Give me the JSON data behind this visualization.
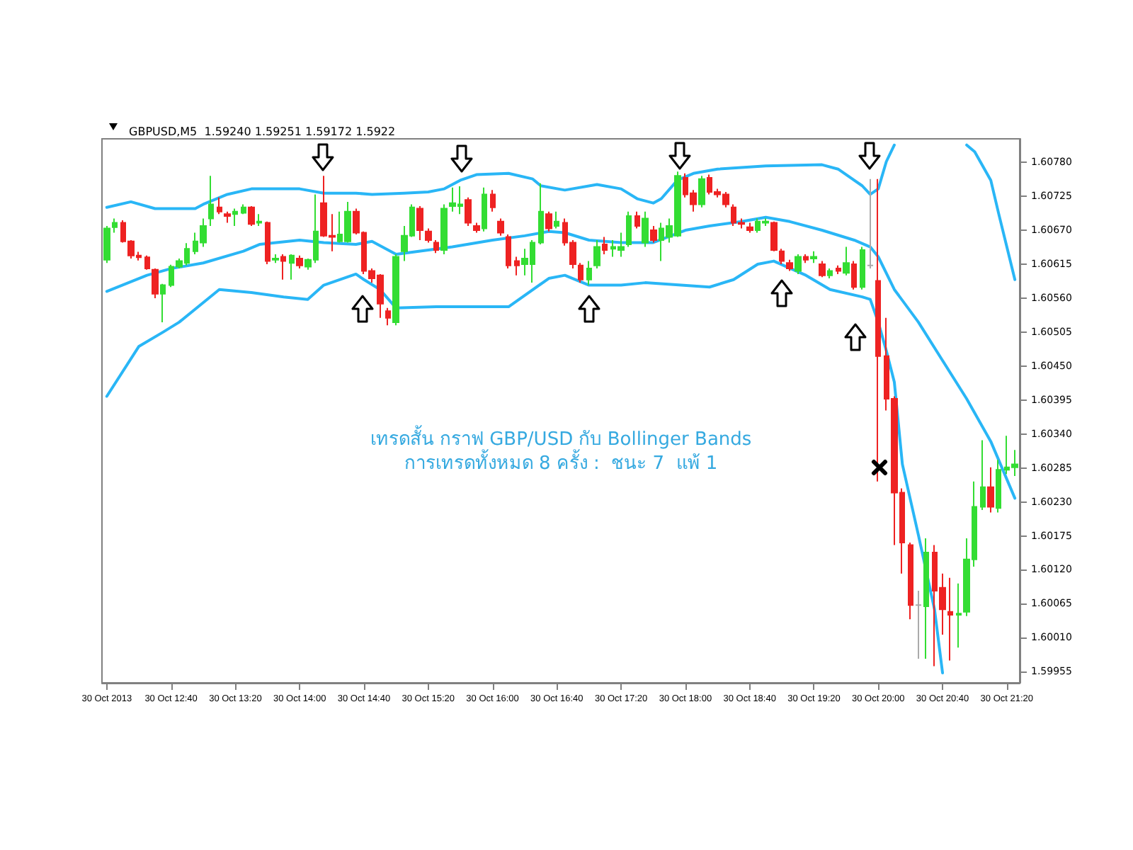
{
  "chart_data": {
    "type": "candlestick",
    "title": "GBPUSD,M5  1.59240 1.59251 1.59172 1.5922",
    "annotations": [
      "เทรดสั้น กราฟ GBP/USD กับ Bollinger Bands",
      "การเทรดทั้งหมด 8 ครั้ง :  ชนะ 7  แพ้ 1"
    ],
    "x": [
      "2013-10-30T12:00",
      "2013-10-30T12:05",
      "2013-10-30T12:10",
      "2013-10-30T12:15",
      "2013-10-30T12:20",
      "2013-10-30T12:25",
      "2013-10-30T12:30",
      "2013-10-30T12:35",
      "2013-10-30T12:40",
      "2013-10-30T12:45",
      "2013-10-30T12:50",
      "2013-10-30T12:55",
      "2013-10-30T13:00",
      "2013-10-30T13:05",
      "2013-10-30T13:10",
      "2013-10-30T13:15",
      "2013-10-30T13:20",
      "2013-10-30T13:25",
      "2013-10-30T13:30",
      "2013-10-30T13:35",
      "2013-10-30T13:40",
      "2013-10-30T13:45",
      "2013-10-30T13:50",
      "2013-10-30T13:55",
      "2013-10-30T14:00",
      "2013-10-30T14:05",
      "2013-10-30T14:10",
      "2013-10-30T14:15",
      "2013-10-30T14:20",
      "2013-10-30T14:25",
      "2013-10-30T14:30",
      "2013-10-30T14:35",
      "2013-10-30T14:40",
      "2013-10-30T14:45",
      "2013-10-30T14:50",
      "2013-10-30T14:55",
      "2013-10-30T15:00",
      "2013-10-30T15:05",
      "2013-10-30T15:10",
      "2013-10-30T15:15",
      "2013-10-30T15:20",
      "2013-10-30T15:25",
      "2013-10-30T15:30",
      "2013-10-30T15:35",
      "2013-10-30T15:40",
      "2013-10-30T15:45",
      "2013-10-30T15:50",
      "2013-10-30T15:55",
      "2013-10-30T16:00",
      "2013-10-30T16:05",
      "2013-10-30T16:10",
      "2013-10-30T16:15",
      "2013-10-30T16:20",
      "2013-10-30T16:25",
      "2013-10-30T16:30",
      "2013-10-30T16:35",
      "2013-10-30T16:40",
      "2013-10-30T16:45",
      "2013-10-30T16:50",
      "2013-10-30T16:55",
      "2013-10-30T17:00",
      "2013-10-30T17:05",
      "2013-10-30T17:10",
      "2013-10-30T17:15",
      "2013-10-30T17:20",
      "2013-10-30T17:25",
      "2013-10-30T17:30",
      "2013-10-30T17:35",
      "2013-10-30T17:40",
      "2013-10-30T17:45",
      "2013-10-30T17:50",
      "2013-10-30T17:55",
      "2013-10-30T18:00",
      "2013-10-30T18:05",
      "2013-10-30T18:10",
      "2013-10-30T18:15",
      "2013-10-30T18:20",
      "2013-10-30T18:25",
      "2013-10-30T18:30",
      "2013-10-30T18:35",
      "2013-10-30T18:40",
      "2013-10-30T18:45",
      "2013-10-30T18:50",
      "2013-10-30T18:55",
      "2013-10-30T19:00",
      "2013-10-30T19:05",
      "2013-10-30T19:10",
      "2013-10-30T19:15",
      "2013-10-30T19:20",
      "2013-10-30T19:25",
      "2013-10-30T19:30",
      "2013-10-30T19:35",
      "2013-10-30T19:40",
      "2013-10-30T19:45",
      "2013-10-30T19:50",
      "2013-10-30T19:55",
      "2013-10-30T20:00",
      "2013-10-30T20:05",
      "2013-10-30T20:10",
      "2013-10-30T20:15",
      "2013-10-30T20:20",
      "2013-10-30T20:25",
      "2013-10-30T20:30",
      "2013-10-30T20:35",
      "2013-10-30T20:40",
      "2013-10-30T20:45",
      "2013-10-30T20:50",
      "2013-10-30T20:55",
      "2013-10-30T21:00",
      "2013-10-30T21:05",
      "2013-10-30T21:10",
      "2013-10-30T21:15",
      "2013-10-30T21:20",
      "2013-10-30T21:25"
    ],
    "xlim": [
      "2013-10-30T11:57",
      "2013-10-30T21:28"
    ],
    "xticks": [
      {
        "value": "2013-10-30T12:00",
        "label": "30 Oct 2013"
      },
      {
        "value": "2013-10-30T12:40",
        "label": "30 Oct 12:40"
      },
      {
        "value": "2013-10-30T13:20",
        "label": "30 Oct 13:20"
      },
      {
        "value": "2013-10-30T14:00",
        "label": "30 Oct 14:00"
      },
      {
        "value": "2013-10-30T14:40",
        "label": "30 Oct 14:40"
      },
      {
        "value": "2013-10-30T15:20",
        "label": "30 Oct 15:20"
      },
      {
        "value": "2013-10-30T16:00",
        "label": "30 Oct 16:00"
      },
      {
        "value": "2013-10-30T16:40",
        "label": "30 Oct 16:40"
      },
      {
        "value": "2013-10-30T17:20",
        "label": "30 Oct 17:20"
      },
      {
        "value": "2013-10-30T18:00",
        "label": "30 Oct 18:00"
      },
      {
        "value": "2013-10-30T18:40",
        "label": "30 Oct 18:40"
      },
      {
        "value": "2013-10-30T19:20",
        "label": "30 Oct 19:20"
      },
      {
        "value": "2013-10-30T20:00",
        "label": "30 Oct 20:00"
      },
      {
        "value": "2013-10-30T20:40",
        "label": "30 Oct 20:40"
      },
      {
        "value": "2013-10-30T21:20",
        "label": "30 Oct 21:20"
      }
    ],
    "ylim": [
      1.59937,
      1.60818
    ],
    "yticks": [
      1.59955,
      {
        "value": 1.6001,
        "label": "1.60010"
      },
      1.60065,
      {
        "value": 1.6012,
        "label": "1.60120"
      },
      1.60175,
      {
        "value": 1.6023,
        "label": "1.60230"
      },
      1.60285,
      {
        "value": 1.6034,
        "label": "1.60340"
      },
      1.60395,
      {
        "value": 1.6045,
        "label": "1.60450"
      },
      1.60505,
      {
        "value": 1.6056,
        "label": "1.60560"
      },
      1.60615,
      {
        "value": 1.6067,
        "label": "1.60670"
      },
      1.60725,
      {
        "value": 1.6078,
        "label": "1.60780"
      }
    ],
    "series": [
      {
        "type": "candlestick",
        "ohlc": [
          [
            1.60622,
            1.60677,
            1.60617,
            1.60673
          ],
          [
            1.60675,
            1.60689,
            1.60666,
            1.60682
          ],
          [
            1.60682,
            1.60686,
            1.6065,
            1.60652
          ],
          [
            1.60652,
            1.60654,
            1.60624,
            1.60629
          ],
          [
            1.60629,
            1.60635,
            1.60621,
            1.60626
          ],
          [
            1.60626,
            1.60629,
            1.60606,
            1.60608
          ],
          [
            1.60606,
            1.60608,
            1.6056,
            1.60567
          ],
          [
            1.60567,
            1.60583,
            1.60521,
            1.60581
          ],
          [
            1.60581,
            1.60614,
            1.60578,
            1.60611
          ],
          [
            1.60611,
            1.60624,
            1.60608,
            1.6062
          ],
          [
            1.60617,
            1.60649,
            1.60613,
            1.6064
          ],
          [
            1.60636,
            1.60666,
            1.60631,
            1.60652
          ],
          [
            1.6065,
            1.60689,
            1.60643,
            1.60677
          ],
          [
            1.60689,
            1.60758,
            1.60677,
            1.60712
          ],
          [
            1.60707,
            1.60723,
            1.60696,
            1.607
          ],
          [
            1.60696,
            1.607,
            1.60682,
            1.60693
          ],
          [
            1.60696,
            1.60705,
            1.60677,
            1.607
          ],
          [
            1.60698,
            1.60712,
            1.60696,
            1.60707
          ],
          [
            1.60707,
            1.60709,
            1.60677,
            1.6068
          ],
          [
            1.60682,
            1.60696,
            1.60677,
            1.60684
          ],
          [
            1.60682,
            1.60684,
            1.60615,
            1.6062
          ],
          [
            1.60622,
            1.60631,
            1.60617,
            1.60624
          ],
          [
            1.60627,
            1.60631,
            1.6059,
            1.6062
          ],
          [
            1.60617,
            1.60631,
            1.6059,
            1.60629
          ],
          [
            1.60624,
            1.60629,
            1.60608,
            1.60613
          ],
          [
            1.60611,
            1.60624,
            1.60606,
            1.60622
          ],
          [
            1.60622,
            1.60728,
            1.60617,
            1.60668
          ],
          [
            1.60714,
            1.60758,
            1.60659,
            1.60661
          ],
          [
            1.60661,
            1.60696,
            1.60636,
            1.60659
          ],
          [
            1.60652,
            1.607,
            1.6065,
            1.60663
          ],
          [
            1.60652,
            1.60716,
            1.6065,
            1.607
          ],
          [
            1.607,
            1.60705,
            1.60663,
            1.60666
          ],
          [
            1.60666,
            1.60668,
            1.60599,
            1.60604
          ],
          [
            1.60604,
            1.60608,
            1.60585,
            1.60592
          ],
          [
            1.60597,
            1.60599,
            1.60528,
            1.60551
          ],
          [
            1.60539,
            1.60544,
            1.60516,
            1.60528
          ],
          [
            1.60521,
            1.60631,
            1.60516,
            1.60627
          ],
          [
            1.60636,
            1.60677,
            1.6062,
            1.60661
          ],
          [
            1.60661,
            1.60712,
            1.60659,
            1.60707
          ],
          [
            1.60705,
            1.60709,
            1.60654,
            1.6067
          ],
          [
            1.60668,
            1.60673,
            1.6065,
            1.60654
          ],
          [
            1.6065,
            1.60654,
            1.60633,
            1.60638
          ],
          [
            1.60638,
            1.60712,
            1.60631,
            1.60705
          ],
          [
            1.60709,
            1.60739,
            1.607,
            1.60714
          ],
          [
            1.60709,
            1.60741,
            1.60696,
            1.60712
          ],
          [
            1.60719,
            1.60723,
            1.60677,
            1.60682
          ],
          [
            1.60677,
            1.60682,
            1.60666,
            1.6067
          ],
          [
            1.60673,
            1.60739,
            1.60668,
            1.60728
          ],
          [
            1.60728,
            1.60735,
            1.607,
            1.60707
          ],
          [
            1.60684,
            1.60689,
            1.60661,
            1.60666
          ],
          [
            1.60659,
            1.60663,
            1.60608,
            1.60613
          ],
          [
            1.6062,
            1.60627,
            1.60597,
            1.60613
          ],
          [
            1.60615,
            1.6064,
            1.60597,
            1.60624
          ],
          [
            1.60615,
            1.60654,
            1.60585,
            1.6065
          ],
          [
            1.6065,
            1.60746,
            1.60647,
            1.607
          ],
          [
            1.60696,
            1.607,
            1.60668,
            1.60673
          ],
          [
            1.60677,
            1.607,
            1.60673,
            1.60684
          ],
          [
            1.60682,
            1.60689,
            1.60645,
            1.6065
          ],
          [
            1.6065,
            1.60654,
            1.60608,
            1.60615
          ],
          [
            1.60613,
            1.60617,
            1.60585,
            1.6059
          ],
          [
            1.6059,
            1.6062,
            1.60581,
            1.60608
          ],
          [
            1.60613,
            1.60654,
            1.60608,
            1.60643
          ],
          [
            1.60647,
            1.60659,
            1.60631,
            1.60638
          ],
          [
            1.6064,
            1.60654,
            1.60627,
            1.60643
          ],
          [
            1.60638,
            1.60666,
            1.60627,
            1.60643
          ],
          [
            1.60647,
            1.607,
            1.60643,
            1.60693
          ],
          [
            1.60693,
            1.607,
            1.60673,
            1.60677
          ],
          [
            1.6065,
            1.607,
            1.60643,
            1.60689
          ],
          [
            1.6067,
            1.60677,
            1.6065,
            1.60654
          ],
          [
            1.60654,
            1.60682,
            1.6062,
            1.60673
          ],
          [
            1.60659,
            1.60689,
            1.6065,
            1.60677
          ],
          [
            1.60661,
            1.60765,
            1.60659,
            1.60758
          ],
          [
            1.60755,
            1.60762,
            1.60723,
            1.60728
          ],
          [
            1.6073,
            1.60735,
            1.607,
            1.60712
          ],
          [
            1.60712,
            1.60758,
            1.60707,
            1.60753
          ],
          [
            1.60755,
            1.6076,
            1.60728,
            1.60732
          ],
          [
            1.60732,
            1.60737,
            1.60723,
            1.60728
          ],
          [
            1.60728,
            1.60732,
            1.60707,
            1.60712
          ],
          [
            1.60707,
            1.60712,
            1.60677,
            1.60682
          ],
          [
            1.60682,
            1.60689,
            1.60673,
            1.6068
          ],
          [
            1.60675,
            1.60682,
            1.60666,
            1.6067
          ],
          [
            1.6067,
            1.60689,
            1.60666,
            1.60684
          ],
          [
            1.60682,
            1.60689,
            1.60677,
            1.60684
          ],
          [
            1.60682,
            1.60684,
            1.60636,
            1.60638
          ],
          [
            1.60636,
            1.6064,
            1.60615,
            1.6062
          ],
          [
            1.60617,
            1.60622,
            1.60604,
            1.60608
          ],
          [
            1.60604,
            1.60631,
            1.60599,
            1.60627
          ],
          [
            1.60627,
            1.60631,
            1.60617,
            1.60622
          ],
          [
            1.60624,
            1.60636,
            1.60617,
            1.60627
          ],
          [
            1.60615,
            1.6062,
            1.60594,
            1.60597
          ],
          [
            1.60597,
            1.60608,
            1.60592,
            1.60604
          ],
          [
            1.60608,
            1.60613,
            1.60599,
            1.60604
          ],
          [
            1.60601,
            1.60643,
            1.60597,
            1.60617
          ],
          [
            1.60615,
            1.6062,
            1.60574,
            1.60578
          ],
          [
            1.60578,
            1.60643,
            1.60574,
            1.60638
          ],
          [
            1.60613,
            1.60753,
            1.60608,
            1.60613
          ],
          [
            1.60588,
            1.60753,
            1.60263,
            1.60466
          ],
          [
            1.60466,
            1.60528,
            1.60378,
            1.60397
          ],
          [
            1.60397,
            1.60401,
            1.6016,
            1.60245
          ],
          [
            1.60245,
            1.60252,
            1.60114,
            1.60164
          ],
          [
            1.6016,
            1.60164,
            1.6004,
            1.60063
          ],
          [
            1.60063,
            1.60086,
            1.59976,
            1.60063
          ],
          [
            1.60061,
            1.60171,
            1.59976,
            1.60148
          ],
          [
            1.60148,
            1.6016,
            1.59964,
            1.60086
          ],
          [
            1.60091,
            1.60114,
            1.60015,
            1.60056
          ],
          [
            1.60052,
            1.60107,
            1.59973,
            1.60047
          ],
          [
            1.60047,
            1.60098,
            1.59994,
            1.60049
          ],
          [
            1.60052,
            1.60171,
            1.60045,
            1.60137
          ],
          [
            1.60137,
            1.60263,
            1.60125,
            1.60222
          ],
          [
            1.60222,
            1.6033,
            1.60217,
            1.60254
          ],
          [
            1.60254,
            1.60286,
            1.60213,
            1.60222
          ],
          [
            1.6022,
            1.60298,
            1.60213,
            1.60282
          ],
          [
            1.60282,
            1.60337,
            1.60275,
            1.60286
          ],
          [
            1.60286,
            1.60314,
            1.60272,
            1.60291
          ]
        ],
        "colors": [
          "#33dd33",
          "#33dd33",
          "#ee2222",
          "#ee2222",
          "#ee2222",
          "#ee2222",
          "#ee2222",
          "#33dd33",
          "#33dd33",
          "#33dd33",
          "#33dd33",
          "#33dd33",
          "#33dd33",
          "#33dd33",
          "#ee2222",
          "#ee2222",
          "#33dd33",
          "#33dd33",
          "#ee2222",
          "#33dd33",
          "#ee2222",
          "#33dd33",
          "#ee2222",
          "#33dd33",
          "#ee2222",
          "#33dd33",
          "#33dd33",
          "#ee2222",
          "#ee2222",
          "#33dd33",
          "#33dd33",
          "#ee2222",
          "#ee2222",
          "#ee2222",
          "#ee2222",
          "#ee2222",
          "#33dd33",
          "#33dd33",
          "#33dd33",
          "#ee2222",
          "#ee2222",
          "#ee2222",
          "#33dd33",
          "#33dd33",
          "#33dd33",
          "#ee2222",
          "#ee2222",
          "#33dd33",
          "#ee2222",
          "#ee2222",
          "#ee2222",
          "#ee2222",
          "#33dd33",
          "#33dd33",
          "#33dd33",
          "#ee2222",
          "#33dd33",
          "#ee2222",
          "#ee2222",
          "#ee2222",
          "#33dd33",
          "#33dd33",
          "#ee2222",
          "#33dd33",
          "#33dd33",
          "#33dd33",
          "#ee2222",
          "#33dd33",
          "#ee2222",
          "#33dd33",
          "#33dd33",
          "#33dd33",
          "#ee2222",
          "#ee2222",
          "#33dd33",
          "#ee2222",
          "#ee2222",
          "#ee2222",
          "#ee2222",
          "#ee2222",
          "#ee2222",
          "#33dd33",
          "#33dd33",
          "#ee2222",
          "#ee2222",
          "#ee2222",
          "#33dd33",
          "#ee2222",
          "#33dd33",
          "#ee2222",
          "#33dd33",
          "#ee2222",
          "#33dd33",
          "#ee2222",
          "#33dd33",
          "#aaaaaa",
          "#ee2222",
          "#ee2222",
          "#ee2222",
          "#ee2222",
          "#ee2222",
          "#aaaaaa",
          "#33dd33",
          "#ee2222",
          "#ee2222",
          "#ee2222",
          "#33dd33",
          "#33dd33",
          "#33dd33",
          "#33dd33",
          "#ee2222",
          "#33dd33",
          "#33dd33",
          "#33dd33"
        ]
      },
      {
        "type": "line",
        "color": "#29b6f6",
        "x": [
          "2013-10-30T12:00",
          "2013-10-30T12:15",
          "2013-10-30T12:30",
          "2013-10-30T12:55",
          "2013-10-30T13:00",
          "2013-10-30T13:15",
          "2013-10-30T13:30",
          "2013-10-30T14:00",
          "2013-10-30T14:15",
          "2013-10-30T14:35",
          "2013-10-30T14:45",
          "2013-10-30T15:05",
          "2013-10-30T15:20",
          "2013-10-30T15:30",
          "2013-10-30T15:40",
          "2013-10-30T15:50",
          "2013-10-30T16:10",
          "2013-10-30T16:25",
          "2013-10-30T16:30",
          "2013-10-30T16:45",
          "2013-10-30T17:05",
          "2013-10-30T17:20",
          "2013-10-30T17:30",
          "2013-10-30T17:40",
          "2013-10-30T17:45",
          "2013-10-30T17:55",
          "2013-10-30T18:05",
          "2013-10-30T18:20",
          "2013-10-30T18:50",
          "2013-10-30T19:25",
          "2013-10-30T19:35",
          "2013-10-30T19:50",
          "2013-10-30T19:55",
          "2013-10-30T20:00",
          "2013-10-30T20:05",
          "2013-10-30T20:10",
          "2013-10-30T20:30",
          "2013-10-30T20:55",
          "2013-10-30T21:00",
          "2013-10-30T21:10",
          "2013-10-30T21:15",
          "2013-10-30T21:20",
          "2013-10-30T21:25"
        ],
        "values": [
          1.60707,
          1.60716,
          1.60705,
          1.60705,
          1.60712,
          1.60728,
          1.60737,
          1.60737,
          1.6073,
          1.6073,
          1.60728,
          1.6073,
          1.60732,
          1.60737,
          1.60751,
          1.6076,
          1.60762,
          1.60753,
          1.60742,
          1.60735,
          1.60744,
          1.60737,
          1.60721,
          1.60714,
          1.60721,
          1.60751,
          1.60762,
          1.60769,
          1.60774,
          1.60776,
          1.60769,
          1.60742,
          1.60728,
          1.60737,
          1.60781,
          1.60808,
          null,
          1.60808,
          1.60797,
          1.60751,
          1.60696,
          1.60643,
          1.6059
        ]
      },
      {
        "type": "line",
        "color": "#29b6f6",
        "x": [
          "2013-10-30T12:00",
          "2013-10-30T12:25",
          "2013-10-30T12:40",
          "2013-10-30T13:00",
          "2013-10-30T13:25",
          "2013-10-30T13:35",
          "2013-10-30T14:00",
          "2013-10-30T14:15",
          "2013-10-30T14:35",
          "2013-10-30T14:45",
          "2013-10-30T15:00",
          "2013-10-30T15:35",
          "2013-10-30T16:00",
          "2013-10-30T16:20",
          "2013-10-30T16:35",
          "2013-10-30T16:45",
          "2013-10-30T17:00",
          "2013-10-30T17:20",
          "2013-10-30T17:40",
          "2013-10-30T18:00",
          "2013-10-30T18:15",
          "2013-10-30T18:35",
          "2013-10-30T18:50",
          "2013-10-30T19:05",
          "2013-10-30T19:25",
          "2013-10-30T19:45",
          "2013-10-30T19:55",
          "2013-10-30T20:00",
          "2013-10-30T20:10",
          "2013-10-30T20:25",
          "2013-10-30T20:40",
          "2013-10-30T20:55",
          "2013-10-30T21:10",
          "2013-10-30T21:25"
        ],
        "values": [
          1.60571,
          1.60597,
          1.60608,
          1.60617,
          1.60636,
          1.60647,
          1.60654,
          1.6065,
          1.60647,
          1.60652,
          1.60631,
          1.60643,
          1.60654,
          1.60661,
          1.60668,
          1.60666,
          1.60654,
          1.6065,
          1.6065,
          1.6067,
          1.60677,
          1.60684,
          1.60691,
          1.60684,
          1.6067,
          1.60654,
          1.60643,
          1.60627,
          1.60574,
          1.60521,
          1.60459,
          1.60397,
          1.60328,
          1.60236
        ]
      },
      {
        "type": "line",
        "color": "#29b6f6",
        "x": [
          "2013-10-30T12:00",
          "2013-10-30T12:20",
          "2013-10-30T12:35",
          "2013-10-30T12:45",
          "2013-10-30T13:10",
          "2013-10-30T13:30",
          "2013-10-30T13:50",
          "2013-10-30T14:05",
          "2013-10-30T14:15",
          "2013-10-30T14:35",
          "2013-10-30T14:40",
          "2013-10-30T14:50",
          "2013-10-30T15:00",
          "2013-10-30T15:25",
          "2013-10-30T16:10",
          "2013-10-30T16:35",
          "2013-10-30T16:45",
          "2013-10-30T17:00",
          "2013-10-30T17:20",
          "2013-10-30T17:35",
          "2013-10-30T18:15",
          "2013-10-30T18:30",
          "2013-10-30T18:45",
          "2013-10-30T18:55",
          "2013-10-30T19:15",
          "2013-10-30T19:30",
          "2013-10-30T19:50",
          "2013-10-30T19:55",
          "2013-10-30T20:00",
          "2013-10-30T20:05",
          "2013-10-30T20:10",
          "2013-10-30T20:15",
          "2013-10-30T20:25",
          "2013-10-30T20:35",
          "2013-10-30T20:40"
        ],
        "values": [
          1.60401,
          1.60482,
          1.60505,
          1.60521,
          1.60574,
          1.60569,
          1.60562,
          1.60558,
          1.60581,
          1.60599,
          1.6059,
          1.60574,
          1.60544,
          1.60546,
          1.60546,
          1.60592,
          1.60597,
          1.60581,
          1.60581,
          1.60585,
          1.60578,
          1.6059,
          1.60615,
          1.6062,
          1.60597,
          1.60574,
          1.60562,
          1.60558,
          1.60521,
          1.60475,
          1.60424,
          1.60291,
          1.60176,
          1.60056,
          1.59953
        ]
      }
    ]
  }
}
